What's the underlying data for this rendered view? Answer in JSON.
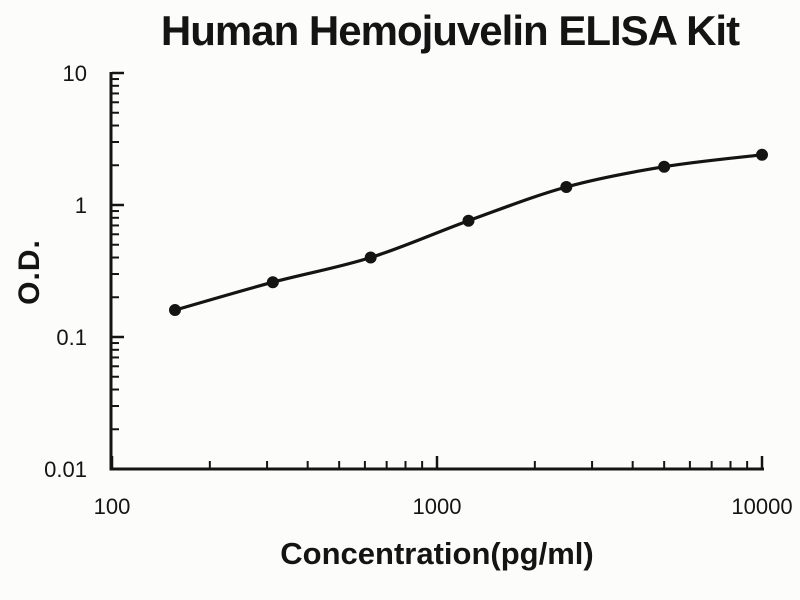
{
  "chart_data": {
    "type": "line",
    "title": "Human Hemojuvelin ELISA Kit",
    "xlabel": "Concentration(pg/ml)",
    "ylabel": "O.D.",
    "x_scale": "log",
    "y_scale": "log",
    "xlim": [
      100,
      10000
    ],
    "ylim": [
      0.01,
      10
    ],
    "grid": false,
    "legend": false,
    "axis_color": "#141414",
    "background_color": "#fcfcfb",
    "x_ticks": [
      {
        "value": 100,
        "label": "100"
      },
      {
        "value": 1000,
        "label": "1000"
      },
      {
        "value": 10000,
        "label": "10000"
      }
    ],
    "y_ticks": [
      {
        "value": 10,
        "label": "10"
      },
      {
        "value": 1,
        "label": "1"
      },
      {
        "value": 0.1,
        "label": "0.1"
      },
      {
        "value": 0.01,
        "label": "0.01"
      }
    ],
    "series": [
      {
        "name": "standard-curve",
        "marker": "filled-circle",
        "color": "#141414",
        "points": [
          {
            "x": 156.25,
            "y": 0.16
          },
          {
            "x": 312.5,
            "y": 0.26
          },
          {
            "x": 625,
            "y": 0.4
          },
          {
            "x": 1250,
            "y": 0.76
          },
          {
            "x": 2500,
            "y": 1.37
          },
          {
            "x": 5000,
            "y": 1.95
          },
          {
            "x": 10000,
            "y": 2.4
          }
        ]
      }
    ]
  }
}
